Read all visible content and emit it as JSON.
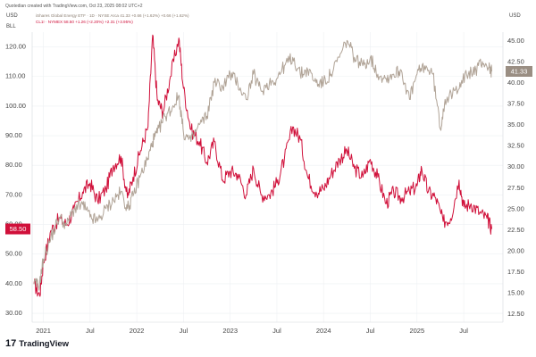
{
  "header": {
    "credit": "Quotedian created with TradingView.com, Oct 23, 2025 08:02 UTC+2",
    "left_unit_top": "USD",
    "left_unit_bottom": "BLL",
    "right_unit": "USD"
  },
  "legend": {
    "etf_line": "iShares Global Energy ETF · 1D · NYSE Arca   41.33  +0.66 (+1.62%)  +0.66 (+1.62%)",
    "oil_line": "CL1! · NYMEX   58.50  +1.26 (+2.20%)  +2.31 (+3.95%)"
  },
  "branding": {
    "logo_text": "TradingView",
    "logo_mark": "17"
  },
  "colors": {
    "oil": "#d0103a",
    "etf": "#b0a396",
    "grid": "#eef0f3",
    "axis_text": "#444444"
  },
  "chart_data": {
    "type": "line",
    "x_ticks": [
      "2021",
      "Jul",
      "2022",
      "Jul",
      "2023",
      "Jul",
      "2024",
      "Jul",
      "2025",
      "Jul"
    ],
    "left_axis": {
      "unit": "BLL",
      "ticks": [
        "30.00",
        "40.00",
        "50.00",
        "60.00",
        "70.00",
        "80.00",
        "90.00",
        "100.00",
        "110.00",
        "120.00"
      ],
      "range": [
        27,
        125
      ]
    },
    "right_axis": {
      "unit": "USD",
      "ticks": [
        "12.50",
        "15.00",
        "17.50",
        "20.00",
        "22.50",
        "25.00",
        "27.50",
        "30.00",
        "32.50",
        "35.00",
        "37.50",
        "40.00",
        "42.50",
        "45.00"
      ],
      "range": [
        11.5,
        46.0
      ]
    },
    "x_range": [
      2020.88,
      2025.92
    ],
    "last_values": {
      "oil": "58.50",
      "etf": "41.33"
    },
    "series": [
      {
        "name": "CL1!",
        "axis": "left",
        "points": [
          [
            2020.9,
            40
          ],
          [
            2020.96,
            36
          ],
          [
            2021.0,
            47
          ],
          [
            2021.08,
            58
          ],
          [
            2021.17,
            62
          ],
          [
            2021.25,
            60
          ],
          [
            2021.33,
            65
          ],
          [
            2021.42,
            71
          ],
          [
            2021.5,
            74
          ],
          [
            2021.58,
            68
          ],
          [
            2021.67,
            72
          ],
          [
            2021.75,
            80
          ],
          [
            2021.83,
            83
          ],
          [
            2021.9,
            69
          ],
          [
            2021.96,
            76
          ],
          [
            2022.04,
            85
          ],
          [
            2022.12,
            93
          ],
          [
            2022.17,
            124
          ],
          [
            2022.22,
            102
          ],
          [
            2022.28,
            98
          ],
          [
            2022.36,
            110
          ],
          [
            2022.45,
            123
          ],
          [
            2022.5,
            106
          ],
          [
            2022.58,
            92
          ],
          [
            2022.67,
            88
          ],
          [
            2022.75,
            81
          ],
          [
            2022.83,
            88
          ],
          [
            2022.92,
            75
          ],
          [
            2023.0,
            78
          ],
          [
            2023.08,
            77
          ],
          [
            2023.17,
            70
          ],
          [
            2023.25,
            79
          ],
          [
            2023.33,
            70
          ],
          [
            2023.42,
            70
          ],
          [
            2023.5,
            74
          ],
          [
            2023.58,
            82
          ],
          [
            2023.67,
            93
          ],
          [
            2023.75,
            89
          ],
          [
            2023.83,
            76
          ],
          [
            2023.92,
            71
          ],
          [
            2024.0,
            72
          ],
          [
            2024.08,
            77
          ],
          [
            2024.17,
            82
          ],
          [
            2024.25,
            85
          ],
          [
            2024.33,
            79
          ],
          [
            2024.42,
            76
          ],
          [
            2024.5,
            82
          ],
          [
            2024.58,
            76
          ],
          [
            2024.67,
            67
          ],
          [
            2024.75,
            71
          ],
          [
            2024.83,
            69
          ],
          [
            2024.92,
            71
          ],
          [
            2025.0,
            73
          ],
          [
            2025.05,
            79
          ],
          [
            2025.12,
            71
          ],
          [
            2025.2,
            69
          ],
          [
            2025.28,
            61
          ],
          [
            2025.36,
            62
          ],
          [
            2025.45,
            75
          ],
          [
            2025.5,
            66
          ],
          [
            2025.58,
            67
          ],
          [
            2025.67,
            64
          ],
          [
            2025.75,
            62
          ],
          [
            2025.8,
            58.5
          ]
        ]
      },
      {
        "name": "iShares Global Energy ETF",
        "axis": "right",
        "points": [
          [
            2020.9,
            16
          ],
          [
            2020.96,
            16
          ],
          [
            2021.0,
            19
          ],
          [
            2021.08,
            21.5
          ],
          [
            2021.17,
            24
          ],
          [
            2021.25,
            23
          ],
          [
            2021.33,
            25
          ],
          [
            2021.42,
            25.5
          ],
          [
            2021.5,
            24
          ],
          [
            2021.58,
            23.5
          ],
          [
            2021.67,
            25
          ],
          [
            2021.75,
            26
          ],
          [
            2021.83,
            27
          ],
          [
            2021.9,
            25
          ],
          [
            2021.96,
            26.5
          ],
          [
            2022.04,
            29
          ],
          [
            2022.12,
            31
          ],
          [
            2022.17,
            33
          ],
          [
            2022.22,
            34
          ],
          [
            2022.3,
            36
          ],
          [
            2022.38,
            37
          ],
          [
            2022.45,
            38.5
          ],
          [
            2022.5,
            34
          ],
          [
            2022.58,
            33
          ],
          [
            2022.67,
            35
          ],
          [
            2022.75,
            36
          ],
          [
            2022.83,
            40
          ],
          [
            2022.92,
            39.5
          ],
          [
            2023.0,
            41
          ],
          [
            2023.08,
            40
          ],
          [
            2023.17,
            38
          ],
          [
            2023.25,
            41
          ],
          [
            2023.33,
            39
          ],
          [
            2023.42,
            40
          ],
          [
            2023.5,
            40.5
          ],
          [
            2023.58,
            42
          ],
          [
            2023.67,
            43
          ],
          [
            2023.75,
            41
          ],
          [
            2023.83,
            41.5
          ],
          [
            2023.92,
            40
          ],
          [
            2024.0,
            40
          ],
          [
            2024.08,
            41
          ],
          [
            2024.17,
            43
          ],
          [
            2024.25,
            45
          ],
          [
            2024.33,
            43
          ],
          [
            2024.42,
            42
          ],
          [
            2024.5,
            43
          ],
          [
            2024.58,
            41
          ],
          [
            2024.67,
            40.5
          ],
          [
            2024.75,
            41
          ],
          [
            2024.83,
            41.5
          ],
          [
            2024.92,
            38
          ],
          [
            2025.0,
            41
          ],
          [
            2025.08,
            42
          ],
          [
            2025.17,
            41
          ],
          [
            2025.25,
            34.5
          ],
          [
            2025.3,
            38
          ],
          [
            2025.38,
            38.5
          ],
          [
            2025.46,
            40
          ],
          [
            2025.55,
            41
          ],
          [
            2025.63,
            41.5
          ],
          [
            2025.7,
            42.5
          ],
          [
            2025.77,
            41.8
          ],
          [
            2025.8,
            41.33
          ]
        ]
      }
    ]
  }
}
